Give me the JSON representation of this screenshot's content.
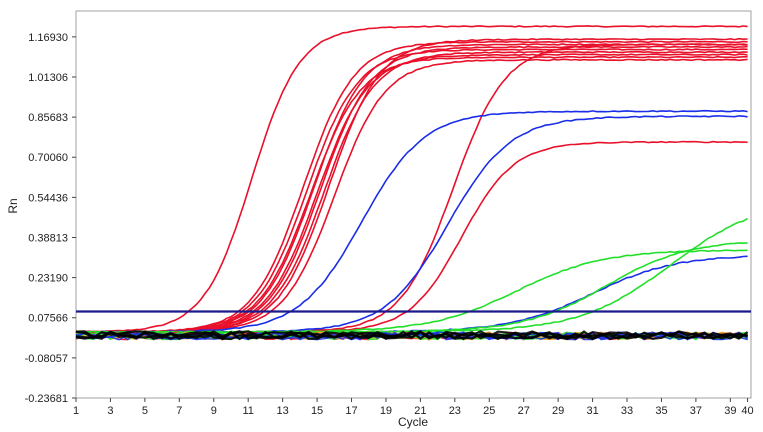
{
  "chart_data": {
    "type": "line",
    "title": "",
    "xlabel": "Cycle",
    "ylabel": "Rn",
    "xlim": [
      1,
      40.2
    ],
    "ylim": [
      -0.23681,
      1.27
    ],
    "grid": false,
    "legend": "none",
    "x_ticks": [
      1,
      3,
      5,
      7,
      9,
      11,
      13,
      15,
      17,
      19,
      21,
      23,
      25,
      27,
      29,
      31,
      33,
      35,
      37,
      39,
      40
    ],
    "x_tick_labels": [
      "1",
      "3",
      "5",
      "7",
      "9",
      "11",
      "13",
      "15",
      "17",
      "19",
      "21",
      "23",
      "25",
      "27",
      "29",
      "31",
      "33",
      "35",
      "37",
      "39",
      "40"
    ],
    "y_ticks": [
      -0.23681,
      -0.08057,
      0.07566,
      0.2319,
      0.38813,
      0.54436,
      0.7006,
      0.85683,
      1.01306,
      1.1693
    ],
    "y_tick_labels": [
      "-0.23681",
      "-0.08057",
      "0.07566",
      "0.23190",
      "0.38813",
      "0.54436",
      "0.70060",
      "0.85683",
      "1.01306",
      "1.16930"
    ],
    "threshold": {
      "value": 0.1,
      "color": "#1a1a8c"
    },
    "series": [
      {
        "color": "#e8102a",
        "min": 0.0,
        "max": 1.19,
        "midpoint": 11.2,
        "slope": 0.72
      },
      {
        "color": "#e8102a",
        "min": 0.0,
        "max": 1.13,
        "midpoint": 14.2,
        "slope": 0.68
      },
      {
        "color": "#e8102a",
        "min": 0.0,
        "max": 1.1,
        "midpoint": 14.4,
        "slope": 0.68
      },
      {
        "color": "#e8102a",
        "min": 0.0,
        "max": 1.07,
        "midpoint": 14.6,
        "slope": 0.68
      },
      {
        "color": "#e8102a",
        "min": 0.0,
        "max": 1.12,
        "midpoint": 14.8,
        "slope": 0.68
      },
      {
        "color": "#e8102a",
        "min": 0.0,
        "max": 1.08,
        "midpoint": 15.0,
        "slope": 0.68
      },
      {
        "color": "#e8102a",
        "min": 0.0,
        "max": 1.11,
        "midpoint": 15.2,
        "slope": 0.68
      },
      {
        "color": "#e8102a",
        "min": 0.0,
        "max": 1.09,
        "midpoint": 15.4,
        "slope": 0.68
      },
      {
        "color": "#e8102a",
        "min": 0.0,
        "max": 1.14,
        "midpoint": 15.7,
        "slope": 0.68
      },
      {
        "color": "#e8102a",
        "min": 0.0,
        "max": 1.06,
        "midpoint": 16.0,
        "slope": 0.68
      },
      {
        "color": "#e8102a",
        "min": 0.0,
        "max": 1.12,
        "midpoint": 22.9,
        "slope": 0.66
      },
      {
        "color": "#e8102a",
        "min": 0.0,
        "max": 0.74,
        "midpoint": 23.4,
        "slope": 0.66
      },
      {
        "color": "#1a2ee8",
        "min": 0.0,
        "max": 0.86,
        "midpoint": 17.6,
        "slope": 0.55
      },
      {
        "color": "#1a2ee8",
        "min": 0.0,
        "max": 0.84,
        "midpoint": 22.6,
        "slope": 0.55
      },
      {
        "color": "#1a2ee8",
        "min": 0.0,
        "max": 0.3,
        "midpoint": 31.0,
        "slope": 0.42
      },
      {
        "color": "#22e02a",
        "min": 0.0,
        "max": 0.52,
        "midpoint": 35.5,
        "slope": 0.38
      },
      {
        "color": "#22e02a",
        "min": 0.0,
        "max": 0.32,
        "midpoint": 26.6,
        "slope": 0.4
      },
      {
        "color": "#22e02a",
        "min": 0.0,
        "max": 0.36,
        "midpoint": 31.8,
        "slope": 0.42
      }
    ],
    "baseline_noise_colors": [
      "#e8102a",
      "#f0a020",
      "#22e02a",
      "#1a2ee8",
      "#000000"
    ]
  }
}
